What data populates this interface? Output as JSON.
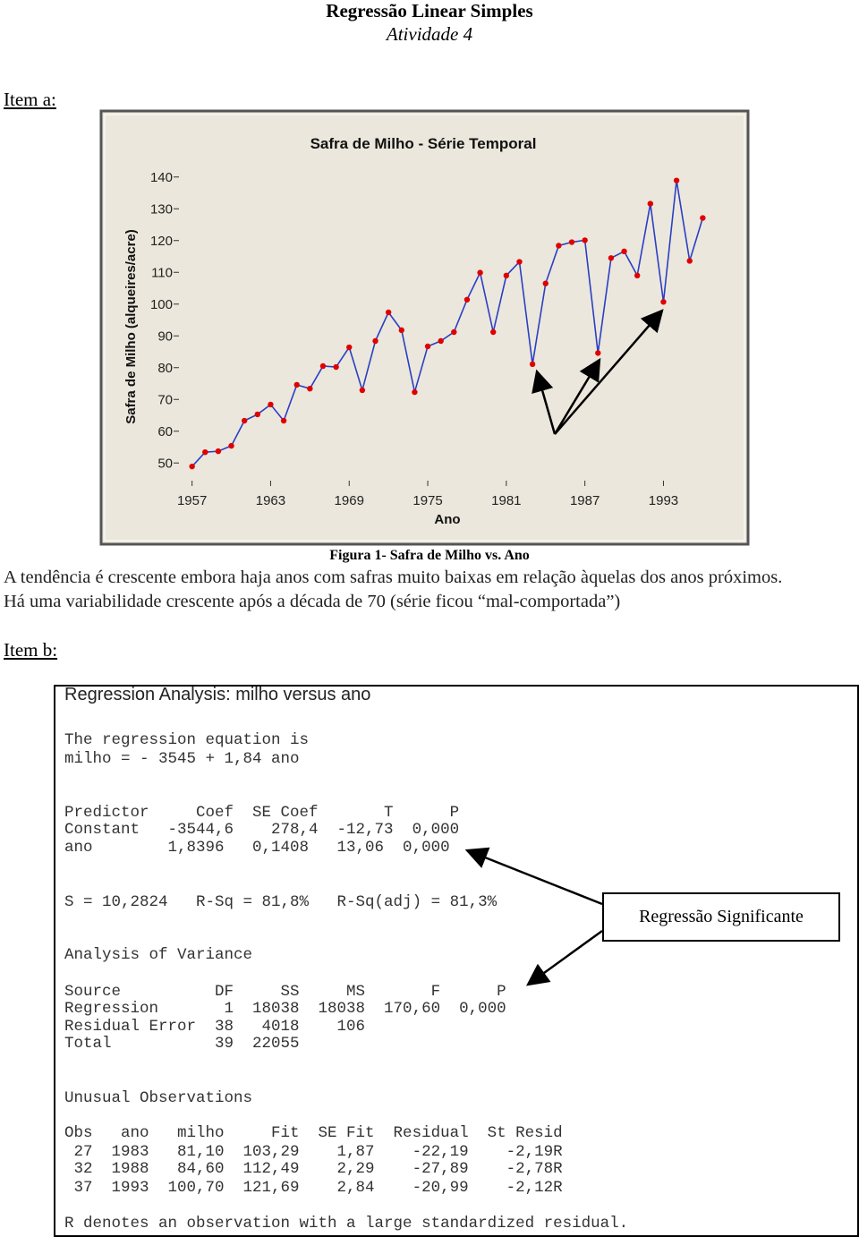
{
  "header": {
    "title": "Regressão Linear Simples",
    "subtitle": "Atividade 4"
  },
  "item_a": "Item a:",
  "chart_data": {
    "type": "line",
    "title": "Safra de Milho - Série Temporal",
    "x_label": "Ano",
    "y_label": "Safra de Milho (alqueires/acre)",
    "x": [
      1957,
      1958,
      1959,
      1960,
      1961,
      1962,
      1963,
      1964,
      1965,
      1966,
      1967,
      1968,
      1969,
      1970,
      1971,
      1972,
      1973,
      1974,
      1975,
      1976,
      1977,
      1978,
      1979,
      1980,
      1981,
      1982,
      1983,
      1984,
      1985,
      1986,
      1987,
      1988,
      1989,
      1990,
      1991,
      1992,
      1993,
      1994,
      1995,
      1996
    ],
    "series": [
      {
        "name": "milho",
        "color": "#2a3fc4",
        "marker_color": "#e00000",
        "values": [
          48.9,
          53.4,
          53.7,
          55.4,
          63.3,
          65.3,
          68.4,
          63.3,
          74.6,
          73.4,
          80.5,
          80.2,
          86.4,
          72.9,
          88.4,
          97.4,
          91.8,
          72.3,
          86.7,
          88.4,
          91.2,
          101.4,
          109.9,
          91.2,
          109.0,
          113.3,
          81.1,
          106.5,
          118.4,
          119.5,
          120.1,
          84.6,
          114.5,
          116.6,
          109.0,
          131.6,
          100.7,
          138.9,
          113.6,
          127.1
        ]
      }
    ],
    "xlim": [
      1956,
      1997
    ],
    "ylim": [
      45,
      145
    ],
    "xticks": [
      1957,
      1963,
      1969,
      1975,
      1981,
      1987,
      1993
    ],
    "yticks": [
      50,
      60,
      70,
      80,
      90,
      100,
      110,
      120,
      130,
      140
    ],
    "background": "#ebe7dc",
    "grid": false
  },
  "figure_caption": "Figura 1- Safra de Milho vs. Ano",
  "paragraphs": [
    "A tendência é crescente embora haja anos com safras muito baixas em relação àquelas dos anos próximos.",
    "Há uma variabilidade crescente após a década de 70 (série ficou “mal-comportada”)"
  ],
  "item_b": "Item b:",
  "regression": {
    "title": "Regression Analysis: milho versus ano",
    "lines": [
      "The regression equation is",
      "milho = - 3545 + 1,84 ano",
      "Predictor     Coef  SE Coef       T      P",
      "Constant   -3544,6    278,4  -12,73  0,000",
      "ano        1,8396   0,1408   13,06  0,000",
      "S = 10,2824   R-Sq = 81,8%   R-Sq(adj) = 81,3%",
      "Analysis of Variance",
      "Source          DF     SS     MS       F      P",
      "Regression       1  18038  18038  170,60  0,000",
      "Residual Error  38   4018    106",
      "Total           39  22055",
      "Unusual Observations",
      "Obs   ano   milho     Fit  SE Fit  Residual  St Resid",
      " 27  1983   81,10  103,29    1,87    -22,19    -2,19R",
      " 32  1988   84,60  112,49    2,29    -27,89    -2,78R",
      " 37  1993  100,70  121,69    2,84    -20,99    -2,12R",
      "R denotes an observation with a large standardized residual."
    ],
    "annotation": "Regressão Significante"
  }
}
